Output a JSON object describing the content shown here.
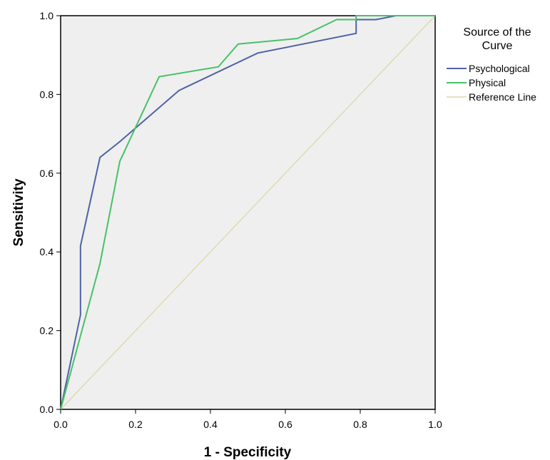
{
  "chart_data": {
    "type": "line",
    "title": "",
    "xlabel": "1 - Specificity",
    "ylabel": "Sensitivity",
    "xlim": [
      0,
      1
    ],
    "ylim": [
      0,
      1
    ],
    "x_ticks": [
      "0.0",
      "0.2",
      "0.4",
      "0.6",
      "0.8",
      "1.0"
    ],
    "y_ticks": [
      "0.0",
      "0.2",
      "0.4",
      "0.6",
      "0.8",
      "1.0"
    ],
    "grid": false,
    "plot_background": "#efefef",
    "legend": {
      "title_lines": [
        "Source of the",
        "Curve"
      ],
      "placement": "right"
    },
    "series": [
      {
        "name": "Psychological",
        "color": "#4e63a5",
        "points": [
          [
            0.0,
            0.0
          ],
          [
            0.053,
            0.24
          ],
          [
            0.053,
            0.415
          ],
          [
            0.105,
            0.64
          ],
          [
            0.158,
            0.68
          ],
          [
            0.316,
            0.81
          ],
          [
            0.526,
            0.905
          ],
          [
            0.789,
            0.955
          ],
          [
            0.789,
            0.99
          ],
          [
            0.842,
            0.99
          ],
          [
            0.895,
            1.0
          ],
          [
            1.0,
            1.0
          ]
        ]
      },
      {
        "name": "Physical",
        "color": "#48c168",
        "points": [
          [
            0.0,
            0.0
          ],
          [
            0.105,
            0.37
          ],
          [
            0.158,
            0.63
          ],
          [
            0.263,
            0.845
          ],
          [
            0.421,
            0.87
          ],
          [
            0.474,
            0.928
          ],
          [
            0.632,
            0.942
          ],
          [
            0.737,
            0.99
          ],
          [
            0.789,
            0.99
          ],
          [
            0.789,
            1.0
          ],
          [
            1.0,
            1.0
          ]
        ]
      },
      {
        "name": "Reference Line",
        "color": "#dcd9a8",
        "points": [
          [
            0.0,
            0.0
          ],
          [
            1.0,
            1.0
          ]
        ]
      }
    ]
  }
}
